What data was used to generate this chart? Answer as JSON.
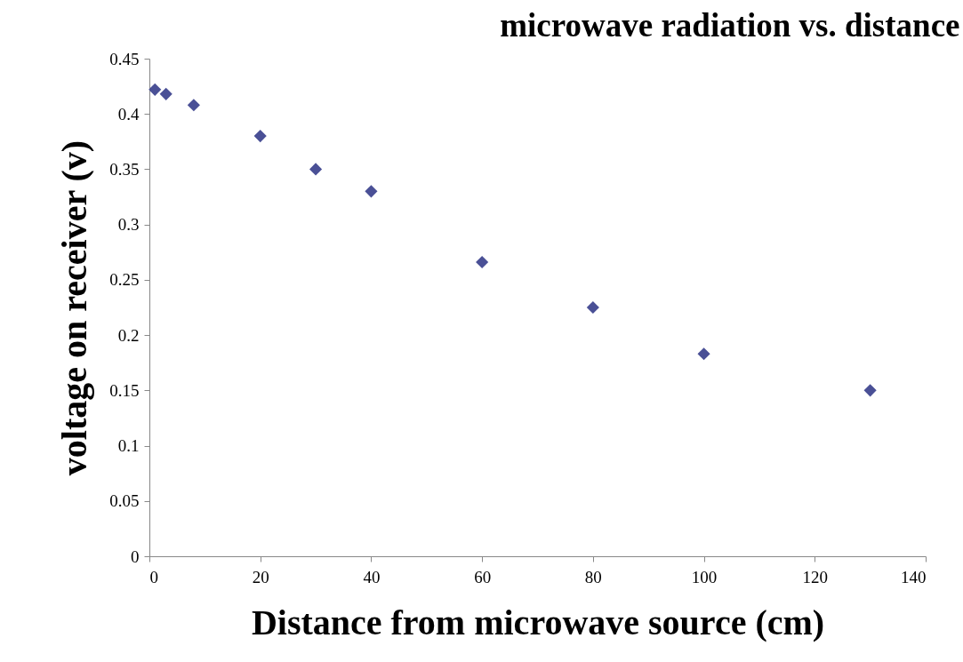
{
  "chart_data": {
    "type": "scatter",
    "title": "microwave radiation vs. distance",
    "xlabel": "Distance from microwave source (cm)",
    "ylabel": "voltage on receiver (v)",
    "x": [
      1,
      3,
      8,
      20,
      30,
      40,
      60,
      80,
      100,
      130
    ],
    "values": [
      0.422,
      0.418,
      0.408,
      0.38,
      0.35,
      0.33,
      0.266,
      0.225,
      0.183,
      0.15
    ],
    "color": "#4a5096",
    "marker": "diamond",
    "xlim": [
      0,
      140
    ],
    "xticks": [
      0,
      20,
      40,
      60,
      80,
      100,
      120,
      140
    ],
    "ylim": [
      0,
      0.45
    ],
    "yticks": [
      0,
      0.05,
      0.1,
      0.15,
      0.2,
      0.25,
      0.3,
      0.35,
      0.4,
      0.45
    ],
    "grid": false
  }
}
